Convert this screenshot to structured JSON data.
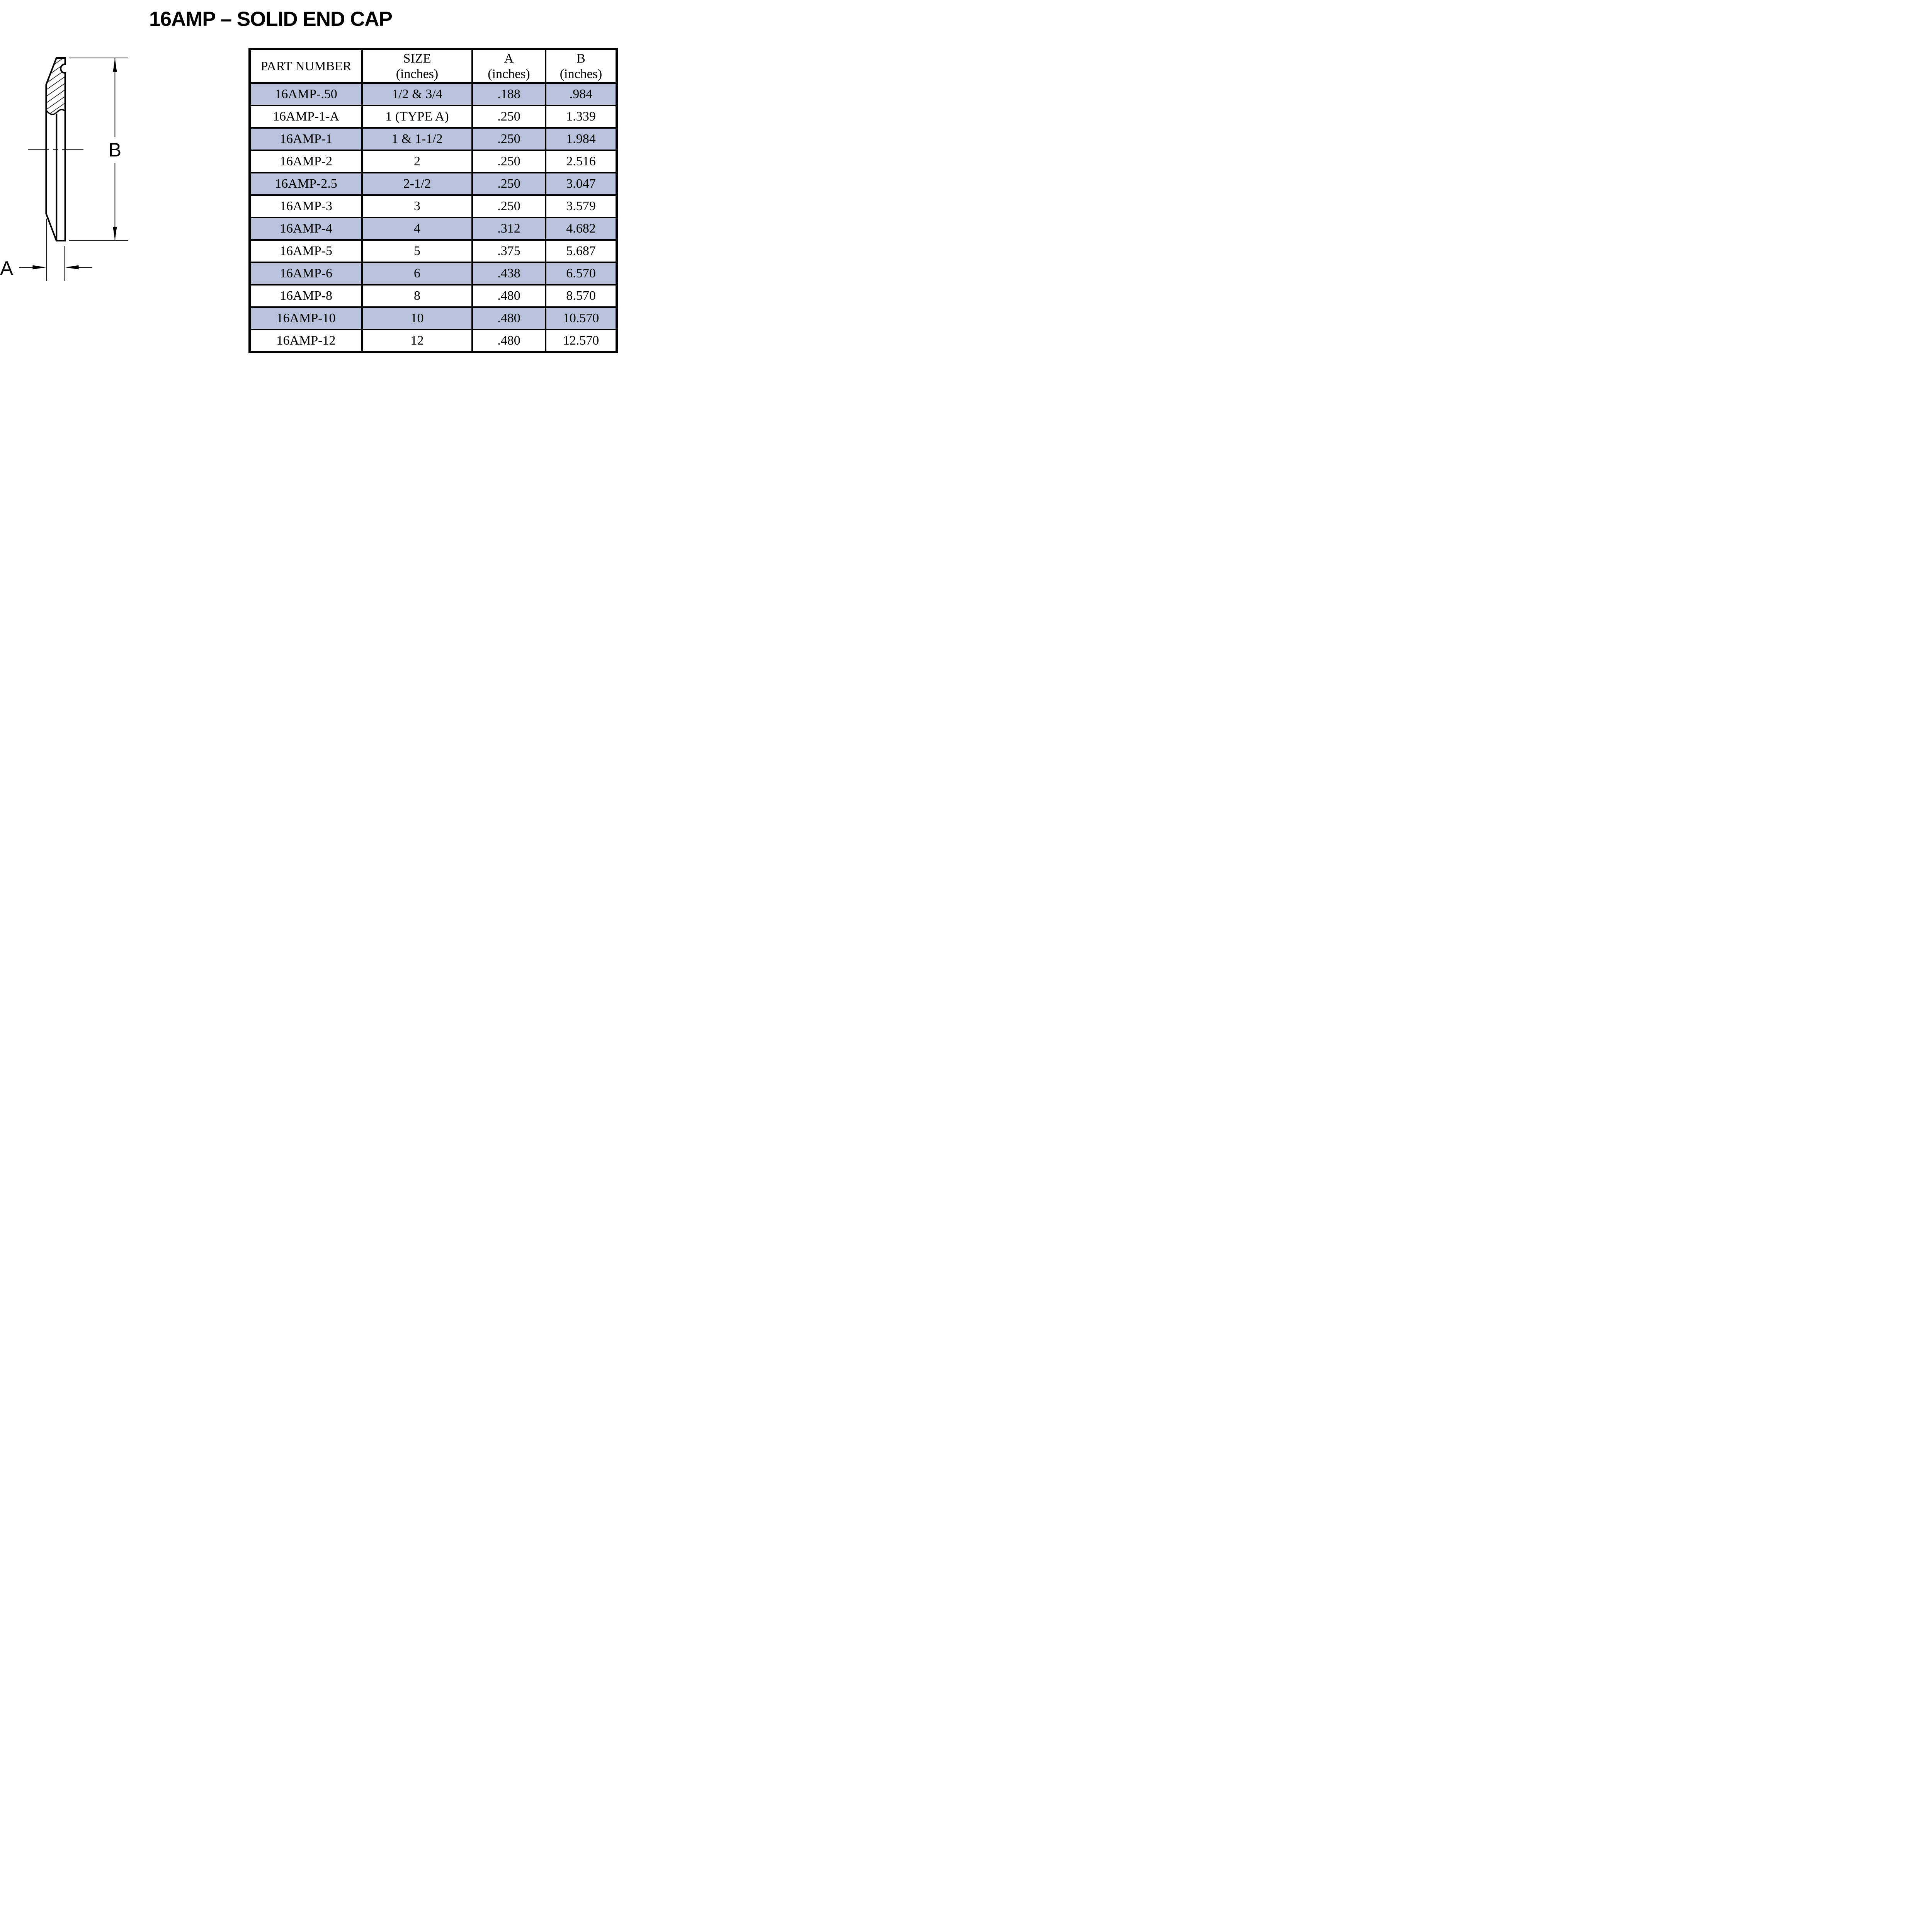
{
  "title": "16AMP – SOLID END CAP",
  "diagram": {
    "label_a": "A",
    "label_b": "B"
  },
  "table": {
    "columns": [
      {
        "label": "PART NUMBER",
        "sub": ""
      },
      {
        "label": "SIZE",
        "sub": "(inches)"
      },
      {
        "label": "A",
        "sub": "(inches)"
      },
      {
        "label": "B",
        "sub": "(inches)"
      }
    ],
    "rows": [
      {
        "part_number": "16AMP-.50",
        "size": "1/2 & 3/4",
        "a": ".188",
        "b": ".984",
        "shaded": true
      },
      {
        "part_number": "16AMP-1-A",
        "size": "1 (TYPE A)",
        "a": ".250",
        "b": "1.339",
        "shaded": false
      },
      {
        "part_number": "16AMP-1",
        "size": "1 & 1-1/2",
        "a": ".250",
        "b": "1.984",
        "shaded": true
      },
      {
        "part_number": "16AMP-2",
        "size": "2",
        "a": ".250",
        "b": "2.516",
        "shaded": false
      },
      {
        "part_number": "16AMP-2.5",
        "size": "2-1/2",
        "a": ".250",
        "b": "3.047",
        "shaded": true
      },
      {
        "part_number": "16AMP-3",
        "size": "3",
        "a": ".250",
        "b": "3.579",
        "shaded": false
      },
      {
        "part_number": "16AMP-4",
        "size": "4",
        "a": ".312",
        "b": "4.682",
        "shaded": true
      },
      {
        "part_number": "16AMP-5",
        "size": "5",
        "a": ".375",
        "b": "5.687",
        "shaded": false
      },
      {
        "part_number": "16AMP-6",
        "size": "6",
        "a": ".438",
        "b": "6.570",
        "shaded": true
      },
      {
        "part_number": "16AMP-8",
        "size": "8",
        "a": ".480",
        "b": "8.570",
        "shaded": false
      },
      {
        "part_number": "16AMP-10",
        "size": "10",
        "a": ".480",
        "b": "10.570",
        "shaded": true
      },
      {
        "part_number": "16AMP-12",
        "size": "12",
        "a": ".480",
        "b": "12.570",
        "shaded": false
      }
    ]
  },
  "colors": {
    "row_highlight": "#b8c2dc",
    "border": "#000000",
    "line": "#000000"
  }
}
